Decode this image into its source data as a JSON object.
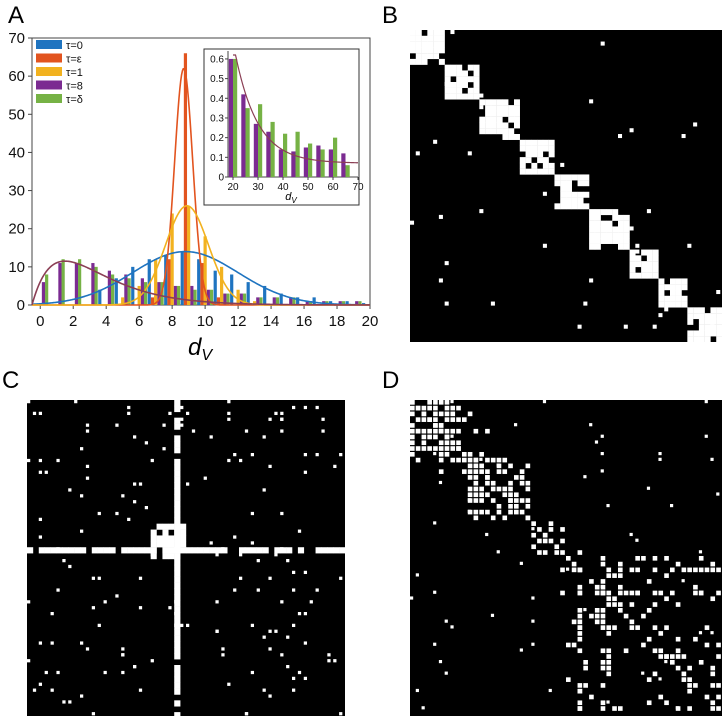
{
  "panels": {
    "a": "A",
    "b": "B",
    "c": "C",
    "d": "D"
  },
  "chart_data": {
    "type": "bar",
    "xlabel": "d",
    "xlabel_sub": "V",
    "ylabel": "",
    "xlim": [
      -0.5,
      20
    ],
    "ylim": [
      0,
      70
    ],
    "xticks": [
      "0",
      "2",
      "4",
      "6",
      "8",
      "10",
      "12",
      "14",
      "16",
      "18",
      "20"
    ],
    "yticks": [
      "0",
      "10",
      "20",
      "30",
      "40",
      "50",
      "60",
      "70"
    ],
    "legend_position": "top-left",
    "colors": {
      "tau0": "#1f74c0",
      "taueps": "#e2541f",
      "tau1": "#f2b21f",
      "tau8": "#7b2b91",
      "taudelta": "#76b245",
      "tau8_line": "#8b3f55"
    },
    "series": [
      {
        "name": "τ=0",
        "color": "#1f74c0",
        "x": [
          4,
          5,
          6,
          7,
          8,
          9,
          10,
          11,
          12,
          13,
          14,
          15,
          16,
          17,
          18,
          19,
          20
        ],
        "values": [
          4,
          7,
          10,
          12,
          13,
          14,
          12,
          9,
          8,
          6,
          5,
          3,
          2,
          2,
          1,
          1,
          0.5
        ]
      },
      {
        "name": "τ=ε",
        "color": "#e2541f",
        "x": [
          7,
          8,
          9,
          10,
          11
        ],
        "values": [
          2,
          12,
          66,
          11,
          2
        ]
      },
      {
        "name": "τ=1",
        "color": "#f2b21f",
        "x": [
          5,
          6,
          7,
          8,
          9,
          10,
          11,
          12,
          13
        ],
        "values": [
          2,
          5,
          12,
          24,
          26,
          18,
          10,
          4,
          1
        ]
      },
      {
        "name": "τ=8",
        "color": "#7b2b91",
        "x": [
          0,
          1,
          2,
          3,
          4,
          5,
          6,
          7,
          8,
          9,
          10,
          11,
          12,
          13,
          14,
          15,
          16,
          17,
          18,
          19
        ],
        "values": [
          6,
          11,
          11,
          11,
          9,
          8,
          7,
          6,
          5,
          5,
          4,
          3,
          3,
          2,
          2,
          2,
          1,
          1,
          1,
          1
        ]
      },
      {
        "name": "τ=δ",
        "color": "#76b245",
        "x": [
          0,
          1,
          2,
          3,
          4,
          5,
          6,
          7,
          8,
          9,
          10,
          11,
          12,
          13,
          14,
          15,
          16,
          17,
          18,
          19
        ],
        "values": [
          8,
          12,
          12,
          10,
          8,
          7,
          6,
          6,
          5,
          4,
          4,
          3,
          3,
          2,
          2,
          2,
          1,
          1,
          1,
          1
        ]
      }
    ],
    "fits": [
      {
        "name": "τ=0",
        "kind": "gaussian",
        "mean": 8.8,
        "sd": 3.2,
        "peak": 14
      },
      {
        "name": "τ=ε",
        "kind": "gaussian",
        "mean": 8.7,
        "sd": 0.55,
        "peak": 62
      },
      {
        "name": "τ=1",
        "kind": "gaussian",
        "mean": 8.9,
        "sd": 1.3,
        "peak": 26
      },
      {
        "name": "τ=8",
        "kind": "skewed",
        "mode": 2.0,
        "peak": 11.5
      }
    ],
    "inset": {
      "type": "bar",
      "xlabel": "d",
      "xlabel_sub": "V",
      "xlim": [
        18,
        70
      ],
      "ylim": [
        0,
        0.62
      ],
      "xticks": [
        "20",
        "30",
        "40",
        "50",
        "60",
        "70"
      ],
      "yticks": [
        "0",
        "0.1",
        "0.2",
        "0.3",
        "0.4",
        "0.5",
        "0.6"
      ],
      "series": [
        {
          "name": "τ=8",
          "color": "#7b2b91",
          "x": [
            20,
            25,
            30,
            35,
            40,
            45,
            50,
            55,
            60,
            65
          ],
          "values": [
            0.6,
            0.42,
            0.27,
            0.23,
            0.14,
            0.13,
            0.15,
            0.16,
            0.14,
            0.12
          ]
        },
        {
          "name": "τ=δ",
          "color": "#76b245",
          "x": [
            20,
            25,
            30,
            35,
            40,
            45,
            50,
            55,
            60,
            65
          ],
          "values": [
            0.6,
            0.35,
            0.37,
            0.28,
            0.22,
            0.23,
            0.17,
            0.14,
            0.2,
            0.06
          ]
        }
      ],
      "fit": {
        "name": "τ=8",
        "kind": "decay",
        "start": 0.6,
        "end": 0.07
      }
    }
  },
  "matrices": {
    "b": {
      "description_kind": "block-diagonal",
      "blocks": [
        [
          0,
          6
        ],
        [
          6,
          12
        ],
        [
          12,
          19
        ],
        [
          19,
          25
        ],
        [
          25,
          31
        ],
        [
          31,
          38
        ],
        [
          38,
          43
        ],
        [
          43,
          48
        ],
        [
          48,
          54
        ]
      ],
      "n": 54
    },
    "c": {
      "description_kind": "hub",
      "hub": 25,
      "n": 54
    },
    "d": {
      "description_kind": "hierarchical",
      "n": 54
    }
  }
}
